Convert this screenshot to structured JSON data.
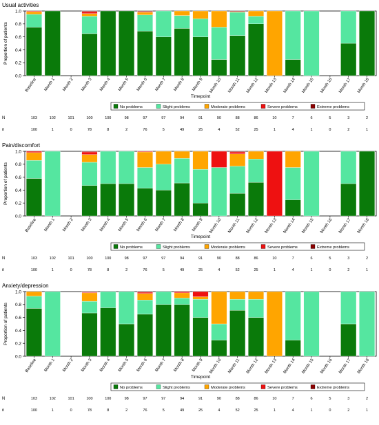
{
  "chart_data": {
    "type": "bar",
    "stacked": true,
    "xlabel": "Timepoint",
    "ylabel": "Proportion of patients",
    "ylim": [
      0,
      1
    ],
    "yticks": [
      "0.0",
      "0.2",
      "0.4",
      "0.6",
      "0.8",
      "1.0"
    ],
    "categories": [
      "Baseline",
      "Month 1",
      "Month 2",
      "Month 3",
      "Month 4",
      "Month 5",
      "Month 6",
      "Month 7",
      "Month 8",
      "Month 9",
      "Month 10",
      "Month 11",
      "Month 12",
      "Month 13",
      "Month 14",
      "Month 15",
      "Month 16",
      "Month 17",
      "Month 18"
    ],
    "legend": {
      "placement": "bottom",
      "entries": [
        "No problems",
        "Slight problems",
        "Moderate problems",
        "Severe problems",
        "Extreme problems"
      ]
    },
    "colors": {
      "No problems": "#0a7a0a",
      "Slight problems": "#55e6a0",
      "Moderate problems": "#ffa500",
      "Severe problems": "#ee1111",
      "Extreme problems": "#8b0000"
    },
    "N_label": "N",
    "n_label": "n",
    "N": [
      "103",
      "102",
      "101",
      "100",
      "100",
      "98",
      "97",
      "97",
      "94",
      "91",
      "90",
      "88",
      "86",
      "10",
      "7",
      "6",
      "5",
      "3",
      "2"
    ],
    "n": [
      "100",
      "1",
      "0",
      "78",
      "8",
      "2",
      "76",
      "5",
      "49",
      "25",
      "4",
      "52",
      "25",
      "1",
      "4",
      "1",
      "0",
      "2",
      "1"
    ],
    "panels": [
      {
        "title": "Usual activities",
        "series": [
          {
            "name": "No problems",
            "values": [
              0.75,
              1.0,
              0,
              0.65,
              1.0,
              1.0,
              0.69,
              0.6,
              0.73,
              0.6,
              0.25,
              0.62,
              0.8,
              0,
              0.25,
              0,
              0,
              0.5,
              1.0
            ]
          },
          {
            "name": "Slight problems",
            "values": [
              0.2,
              0,
              0,
              0.27,
              0,
              0,
              0.25,
              0.4,
              0.2,
              0.28,
              0.5,
              0.36,
              0.12,
              0,
              0.75,
              1.0,
              0,
              0.5,
              0
            ]
          },
          {
            "name": "Moderate problems",
            "values": [
              0.04,
              0,
              0,
              0.04,
              0,
              0,
              0.04,
              0,
              0.07,
              0.12,
              0.25,
              0.01,
              0.08,
              1.0,
              0,
              0,
              0,
              0,
              0
            ]
          },
          {
            "name": "Severe problems",
            "values": [
              0.01,
              0,
              0,
              0.03,
              0,
              0,
              0.01,
              0,
              0,
              0,
              0,
              0,
              0,
              0,
              0,
              0,
              0,
              0,
              0
            ]
          },
          {
            "name": "Extreme problems",
            "values": [
              0,
              0,
              0,
              0.01,
              0,
              0,
              0.01,
              0,
              0,
              0,
              0,
              0.01,
              0,
              0,
              0,
              0,
              0,
              0,
              0
            ]
          }
        ]
      },
      {
        "title": "Pain/discomfort",
        "series": [
          {
            "name": "No problems",
            "values": [
              0.58,
              0,
              0,
              0.47,
              0.5,
              0.5,
              0.43,
              0.4,
              0.51,
              0.2,
              0,
              0.35,
              0.52,
              0,
              0.25,
              0,
              0,
              0.5,
              1.0
            ]
          },
          {
            "name": "Slight problems",
            "values": [
              0.28,
              1.0,
              0,
              0.36,
              0.5,
              0.5,
              0.32,
              0.4,
              0.38,
              0.52,
              0.75,
              0.42,
              0.36,
              0,
              0.5,
              1.0,
              0,
              0.5,
              0
            ]
          },
          {
            "name": "Moderate problems",
            "values": [
              0.12,
              0,
              0,
              0.12,
              0,
              0,
              0.24,
              0.2,
              0.11,
              0.28,
              0,
              0.19,
              0.12,
              0,
              0.25,
              0,
              0,
              0,
              0
            ]
          },
          {
            "name": "Severe problems",
            "values": [
              0.02,
              0,
              0,
              0.04,
              0,
              0,
              0.01,
              0,
              0,
              0,
              0.25,
              0.03,
              0,
              1.0,
              0,
              0,
              0,
              0,
              0
            ]
          },
          {
            "name": "Extreme problems",
            "values": [
              0,
              0,
              0,
              0.01,
              0,
              0,
              0,
              0,
              0,
              0,
              0,
              0.01,
              0,
              0,
              0,
              0,
              0,
              0,
              0
            ]
          }
        ]
      },
      {
        "title": "Anxiety/depression",
        "series": [
          {
            "name": "No problems",
            "values": [
              0.74,
              0,
              0,
              0.67,
              0.75,
              0.5,
              0.65,
              0.8,
              0.8,
              0.6,
              0.25,
              0.71,
              0.6,
              0,
              0.25,
              0,
              0,
              0.5,
              0
            ]
          },
          {
            "name": "Slight problems",
            "values": [
              0.19,
              1.0,
              0,
              0.18,
              0.25,
              0.5,
              0.22,
              0.2,
              0.1,
              0.28,
              0.25,
              0.17,
              0.28,
              0,
              0.75,
              1.0,
              0,
              0.5,
              1.0
            ]
          },
          {
            "name": "Moderate problems",
            "values": [
              0.07,
              0,
              0,
              0.13,
              0,
              0,
              0.1,
              0,
              0.08,
              0.04,
              0.5,
              0.12,
              0.12,
              1.0,
              0,
              0,
              0,
              0,
              0
            ]
          },
          {
            "name": "Severe problems",
            "values": [
              0,
              0,
              0,
              0.01,
              0,
              0,
              0.02,
              0,
              0.02,
              0.08,
              0,
              0,
              0,
              0,
              0,
              0,
              0,
              0,
              0
            ]
          },
          {
            "name": "Extreme problems",
            "values": [
              0,
              0,
              0,
              0.01,
              0,
              0,
              0.01,
              0,
              0,
              0,
              0,
              0,
              0,
              0,
              0,
              0,
              0,
              0,
              0
            ]
          }
        ]
      }
    ]
  }
}
